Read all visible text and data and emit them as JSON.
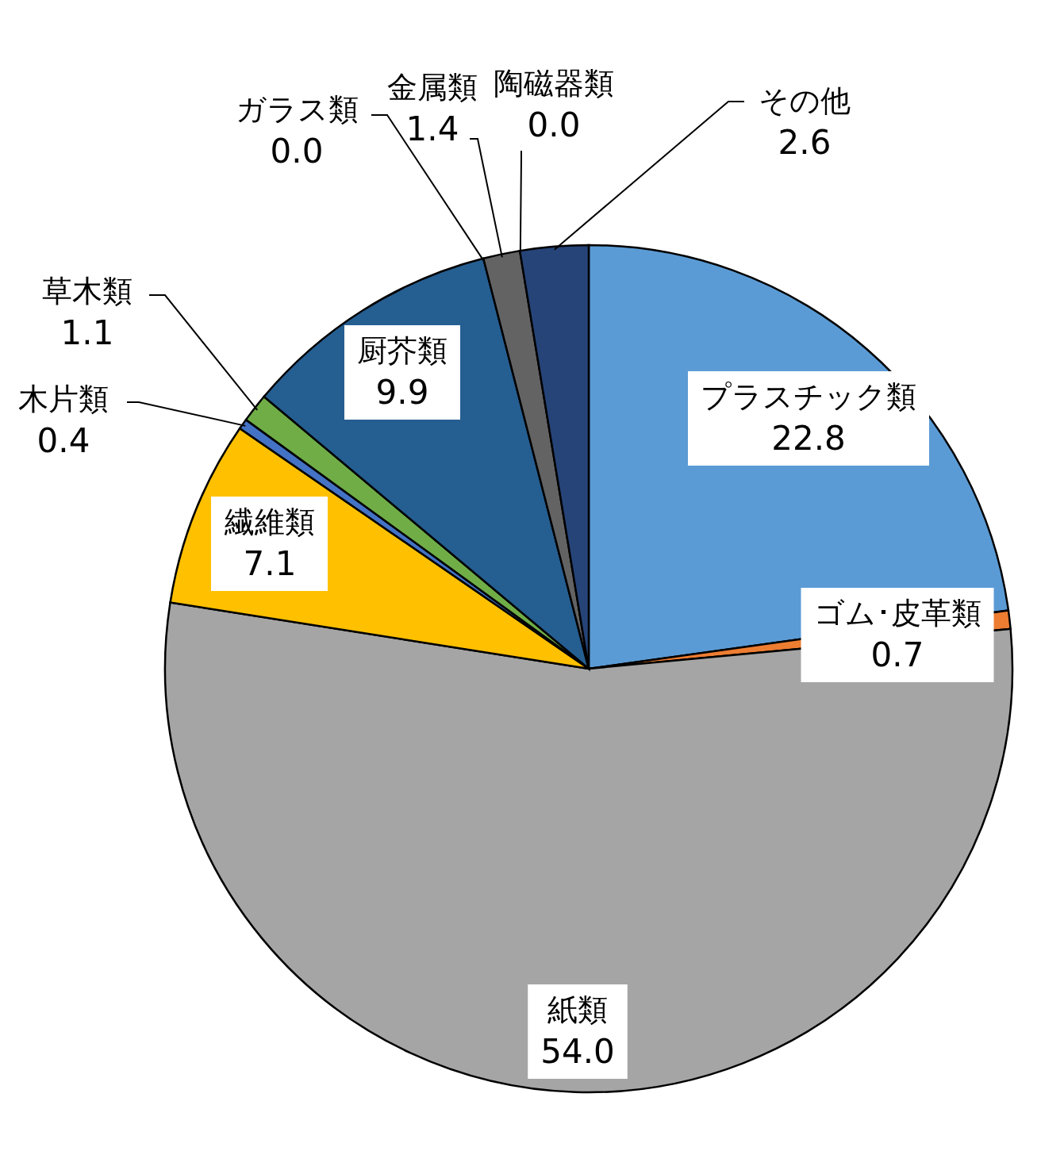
{
  "chart_data": {
    "type": "pie",
    "categories": [
      "プラスチック類",
      "ゴム･皮革類",
      "紙類",
      "繊維類",
      "木片類",
      "草木類",
      "厨芥類",
      "ガラス類",
      "金属類",
      "陶磁器類",
      "その他"
    ],
    "values": [
      22.8,
      0.7,
      54.0,
      7.1,
      0.4,
      1.1,
      9.9,
      0.0,
      1.4,
      0.0,
      2.6
    ],
    "value_labels": [
      "22.8",
      "0.7",
      "54.0",
      "7.1",
      "0.4",
      "1.1",
      "9.9",
      "0.0",
      "1.4",
      "0.0",
      "2.6"
    ],
    "colors": [
      "#5b9bd5",
      "#ed7d31",
      "#a5a5a5",
      "#ffc000",
      "#4472c4",
      "#70ad47",
      "#255e91",
      "#9e480e",
      "#636363",
      "#997300",
      "#264478"
    ]
  }
}
